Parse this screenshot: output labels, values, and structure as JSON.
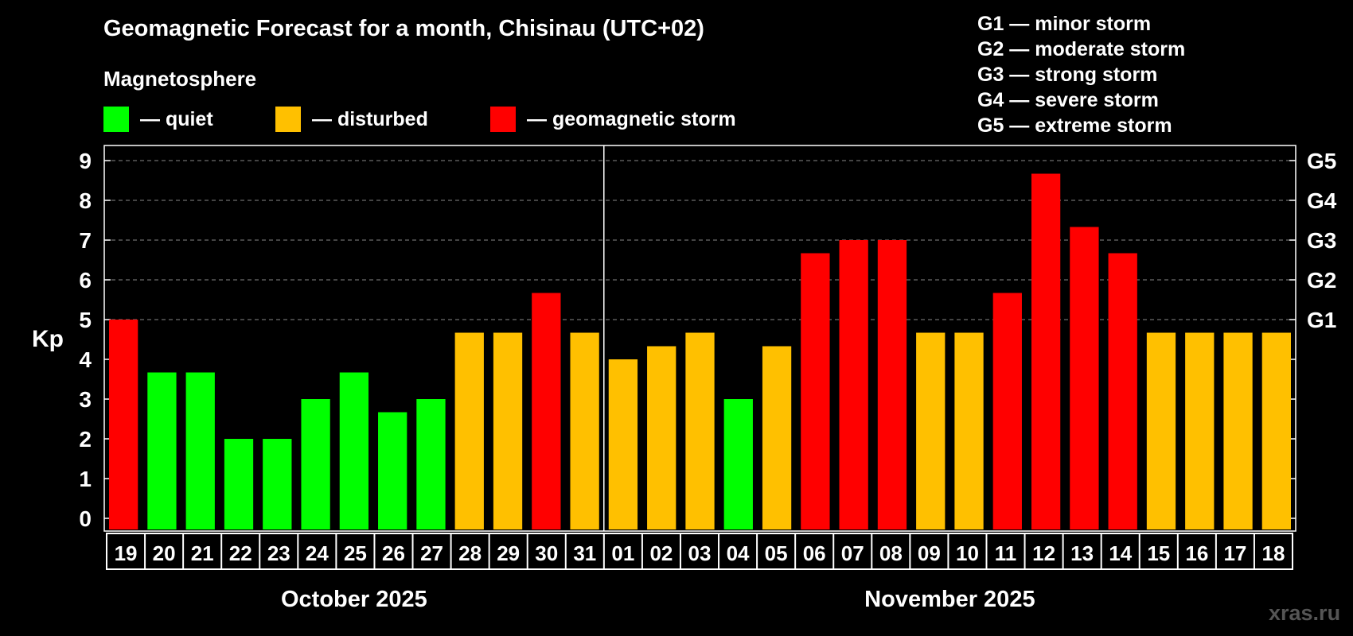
{
  "title": "Geomagnetic Forecast for a month, Chisinau (UTC+02)",
  "subtitle": "Magnetosphere",
  "legend": [
    {
      "label": "— quiet",
      "color": "#00ff00"
    },
    {
      "label": "— disturbed",
      "color": "#ffc000"
    },
    {
      "label": "— geomagnetic storm",
      "color": "#ff0000"
    }
  ],
  "g_scale": [
    "G1 — minor storm",
    "G2 — moderate storm",
    "G3 — strong storm",
    "G4 — severe storm",
    "G5 — extreme storm"
  ],
  "watermark": "xras.ru",
  "chart_data": {
    "type": "bar",
    "ylabel": "Kp",
    "ylim": [
      0,
      9
    ],
    "yticks": [
      "0",
      "1",
      "2",
      "3",
      "4",
      "5",
      "6",
      "7",
      "8",
      "9"
    ],
    "right_ticks": [
      {
        "value": 5,
        "label": "G1"
      },
      {
        "value": 6,
        "label": "G2"
      },
      {
        "value": 7,
        "label": "G3"
      },
      {
        "value": 8,
        "label": "G4"
      },
      {
        "value": 9,
        "label": "G5"
      }
    ],
    "grid": true,
    "months": [
      {
        "label": "October 2025",
        "days": 13
      },
      {
        "label": "November 2025",
        "days": 18
      }
    ],
    "categories": [
      "19",
      "20",
      "21",
      "22",
      "23",
      "24",
      "25",
      "26",
      "27",
      "28",
      "29",
      "30",
      "31",
      "01",
      "02",
      "03",
      "04",
      "05",
      "06",
      "07",
      "08",
      "09",
      "10",
      "11",
      "12",
      "13",
      "14",
      "15",
      "16",
      "17",
      "18"
    ],
    "values": [
      5.0,
      3.67,
      3.67,
      2.0,
      2.0,
      3.0,
      3.67,
      2.67,
      3.0,
      4.67,
      4.67,
      5.67,
      4.67,
      4.0,
      4.33,
      4.67,
      3.0,
      4.33,
      6.67,
      7.0,
      7.0,
      4.67,
      4.67,
      5.67,
      8.67,
      7.33,
      6.67,
      4.67,
      4.67,
      4.67,
      4.67
    ],
    "status": [
      "storm",
      "quiet",
      "quiet",
      "quiet",
      "quiet",
      "quiet",
      "quiet",
      "quiet",
      "quiet",
      "disturbed",
      "disturbed",
      "storm",
      "disturbed",
      "disturbed",
      "disturbed",
      "disturbed",
      "quiet",
      "disturbed",
      "storm",
      "storm",
      "storm",
      "disturbed",
      "disturbed",
      "storm",
      "storm",
      "storm",
      "storm",
      "disturbed",
      "disturbed",
      "disturbed",
      "disturbed"
    ],
    "status_colors": {
      "quiet": "#00ff00",
      "disturbed": "#ffc000",
      "storm": "#ff0000"
    }
  }
}
